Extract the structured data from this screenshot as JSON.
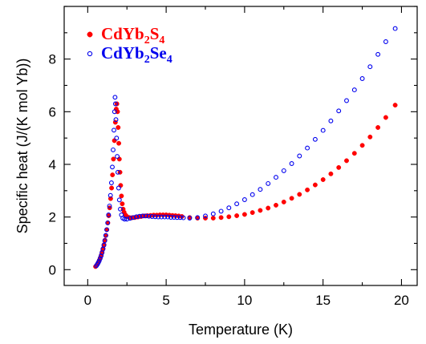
{
  "chart_data": {
    "type": "scatter",
    "xlabel": "Temperature (K)",
    "ylabel": "Specific heat (J/(K mol Yb))",
    "xlim": [
      -1.5,
      21
    ],
    "ylim": [
      -0.6,
      10
    ],
    "x_ticks": [
      0,
      5,
      10,
      15,
      20
    ],
    "y_ticks": [
      0,
      2,
      4,
      6,
      8
    ],
    "grid": false,
    "legend_position": "top-left",
    "series": [
      {
        "name": "CdYb2S4",
        "name_base": "CdYb",
        "name_sub1": "2",
        "name_mid": "S",
        "name_sub2": "4",
        "color": "#ff0000",
        "marker": "filled-circle",
        "points": [
          [
            0.5,
            0.12
          ],
          [
            0.56,
            0.16
          ],
          [
            0.62,
            0.22
          ],
          [
            0.68,
            0.28
          ],
          [
            0.74,
            0.36
          ],
          [
            0.8,
            0.45
          ],
          [
            0.86,
            0.55
          ],
          [
            0.92,
            0.67
          ],
          [
            0.98,
            0.8
          ],
          [
            1.04,
            0.95
          ],
          [
            1.1,
            1.12
          ],
          [
            1.16,
            1.3
          ],
          [
            1.22,
            1.52
          ],
          [
            1.28,
            1.78
          ],
          [
            1.34,
            2.05
          ],
          [
            1.4,
            2.35
          ],
          [
            1.46,
            2.7
          ],
          [
            1.52,
            3.1
          ],
          [
            1.58,
            3.6
          ],
          [
            1.64,
            4.2
          ],
          [
            1.7,
            4.9
          ],
          [
            1.76,
            5.6
          ],
          [
            1.82,
            6.1
          ],
          [
            1.86,
            6.3
          ],
          [
            1.9,
            6.0
          ],
          [
            1.94,
            5.4
          ],
          [
            1.98,
            4.8
          ],
          [
            2.02,
            4.2
          ],
          [
            2.06,
            3.7
          ],
          [
            2.1,
            3.2
          ],
          [
            2.15,
            2.8
          ],
          [
            2.2,
            2.5
          ],
          [
            2.26,
            2.3
          ],
          [
            2.32,
            2.18
          ],
          [
            2.4,
            2.08
          ],
          [
            2.5,
            2.02
          ],
          [
            2.65,
            1.98
          ],
          [
            2.8,
            1.97
          ],
          [
            3.0,
            1.98
          ],
          [
            3.2,
            2.0
          ],
          [
            3.4,
            2.02
          ],
          [
            3.6,
            2.04
          ],
          [
            3.8,
            2.05
          ],
          [
            4.0,
            2.06
          ],
          [
            4.2,
            2.07
          ],
          [
            4.4,
            2.07
          ],
          [
            4.6,
            2.08
          ],
          [
            4.8,
            2.08
          ],
          [
            5.0,
            2.08
          ],
          [
            5.2,
            2.07
          ],
          [
            5.4,
            2.06
          ],
          [
            5.6,
            2.05
          ],
          [
            5.8,
            2.04
          ],
          [
            6.0,
            2.02
          ],
          [
            6.5,
            1.98
          ],
          [
            7.0,
            1.96
          ],
          [
            7.5,
            1.96
          ],
          [
            8.0,
            1.96
          ],
          [
            8.5,
            1.98
          ],
          [
            9.0,
            2.01
          ],
          [
            9.5,
            2.05
          ],
          [
            10.0,
            2.1
          ],
          [
            10.5,
            2.17
          ],
          [
            11.0,
            2.25
          ],
          [
            11.5,
            2.34
          ],
          [
            12.0,
            2.45
          ],
          [
            12.5,
            2.57
          ],
          [
            13.0,
            2.71
          ],
          [
            13.5,
            2.86
          ],
          [
            14.0,
            3.03
          ],
          [
            14.5,
            3.22
          ],
          [
            15.0,
            3.42
          ],
          [
            15.5,
            3.64
          ],
          [
            16.0,
            3.88
          ],
          [
            16.5,
            4.14
          ],
          [
            17.0,
            4.42
          ],
          [
            17.5,
            4.72
          ],
          [
            18.0,
            5.04
          ],
          [
            18.5,
            5.4
          ],
          [
            19.0,
            5.78
          ],
          [
            19.6,
            6.25
          ]
        ]
      },
      {
        "name": "CdYb2Se4",
        "name_base": "CdYb",
        "name_sub1": "2",
        "name_mid": "Se",
        "name_sub2": "4",
        "color": "#0000ee",
        "marker": "open-circle",
        "points": [
          [
            0.55,
            0.15
          ],
          [
            0.61,
            0.2
          ],
          [
            0.67,
            0.26
          ],
          [
            0.73,
            0.33
          ],
          [
            0.79,
            0.42
          ],
          [
            0.85,
            0.52
          ],
          [
            0.91,
            0.64
          ],
          [
            0.97,
            0.78
          ],
          [
            1.03,
            0.93
          ],
          [
            1.09,
            1.1
          ],
          [
            1.15,
            1.3
          ],
          [
            1.21,
            1.52
          ],
          [
            1.27,
            1.78
          ],
          [
            1.33,
            2.08
          ],
          [
            1.39,
            2.42
          ],
          [
            1.45,
            2.82
          ],
          [
            1.51,
            3.3
          ],
          [
            1.57,
            3.9
          ],
          [
            1.62,
            4.55
          ],
          [
            1.67,
            5.3
          ],
          [
            1.71,
            6.0
          ],
          [
            1.74,
            6.55
          ],
          [
            1.77,
            6.3
          ],
          [
            1.8,
            5.7
          ],
          [
            1.84,
            5.0
          ],
          [
            1.88,
            4.3
          ],
          [
            1.92,
            3.7
          ],
          [
            1.97,
            3.1
          ],
          [
            2.02,
            2.65
          ],
          [
            2.08,
            2.3
          ],
          [
            2.15,
            2.08
          ],
          [
            2.24,
            1.96
          ],
          [
            2.35,
            1.92
          ],
          [
            2.5,
            1.92
          ],
          [
            2.7,
            1.95
          ],
          [
            2.9,
            1.98
          ],
          [
            3.1,
            2.01
          ],
          [
            3.3,
            2.03
          ],
          [
            3.5,
            2.04
          ],
          [
            3.7,
            2.04
          ],
          [
            3.9,
            2.03
          ],
          [
            4.1,
            2.02
          ],
          [
            4.3,
            2.01
          ],
          [
            4.5,
            2.0
          ],
          [
            4.7,
            2.0
          ],
          [
            4.9,
            2.0
          ],
          [
            5.1,
            2.0
          ],
          [
            5.3,
            1.99
          ],
          [
            5.5,
            1.99
          ],
          [
            5.7,
            1.98
          ],
          [
            5.9,
            1.98
          ],
          [
            6.1,
            1.97
          ],
          [
            6.5,
            1.96
          ],
          [
            7.0,
            1.98
          ],
          [
            7.5,
            2.04
          ],
          [
            8.0,
            2.12
          ],
          [
            8.5,
            2.22
          ],
          [
            9.0,
            2.35
          ],
          [
            9.5,
            2.5
          ],
          [
            10.0,
            2.66
          ],
          [
            10.5,
            2.85
          ],
          [
            11.0,
            3.05
          ],
          [
            11.5,
            3.27
          ],
          [
            12.0,
            3.51
          ],
          [
            12.5,
            3.76
          ],
          [
            13.0,
            4.03
          ],
          [
            13.5,
            4.32
          ],
          [
            14.0,
            4.62
          ],
          [
            14.5,
            4.95
          ],
          [
            15.0,
            5.29
          ],
          [
            15.5,
            5.65
          ],
          [
            16.0,
            6.03
          ],
          [
            16.5,
            6.42
          ],
          [
            17.0,
            6.83
          ],
          [
            17.5,
            7.26
          ],
          [
            18.0,
            7.71
          ],
          [
            18.5,
            8.18
          ],
          [
            19.0,
            8.66
          ],
          [
            19.6,
            9.16
          ]
        ]
      }
    ]
  }
}
